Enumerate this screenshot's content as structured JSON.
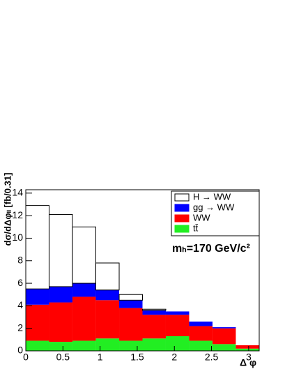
{
  "chart_data": {
    "type": "stacked_histogram",
    "ylabel": "dσ/dΔφₗₗ [fb/0.31]",
    "xlabel": "Δ φ",
    "annotation": "mₕ=170 GeV/c²",
    "bins": [
      0,
      0.314,
      0.628,
      0.942,
      1.257,
      1.571,
      1.885,
      2.199,
      2.513,
      2.827,
      3.142
    ],
    "series": [
      {
        "name": "tt̄",
        "color": "#22ee22",
        "values": [
          0.9,
          0.8,
          0.9,
          1.1,
          0.9,
          1.1,
          1.3,
          0.9,
          0.6,
          0.2
        ]
      },
      {
        "name": "WW",
        "color": "#ff0000",
        "values": [
          3.2,
          3.5,
          3.9,
          3.4,
          2.9,
          2.1,
          1.9,
          1.3,
          1.4,
          0.3
        ]
      },
      {
        "name": "gg → WW",
        "color": "#0000ff",
        "values": [
          1.4,
          1.4,
          1.2,
          0.9,
          0.7,
          0.4,
          0.3,
          0.4,
          0.1,
          0.0
        ]
      },
      {
        "name": "H → WW",
        "color": "none",
        "values": [
          7.4,
          6.4,
          5.0,
          2.4,
          0.5,
          0.1,
          0,
          0,
          0,
          0
        ]
      }
    ],
    "xlim": [
      0,
      3.142
    ],
    "ylim": [
      0,
      14.3
    ],
    "xticks": [
      0,
      0.5,
      1,
      1.5,
      2,
      2.5,
      3
    ],
    "yticks": [
      0,
      2,
      4,
      6,
      8,
      10,
      12,
      14
    ],
    "legend": "top-right"
  }
}
